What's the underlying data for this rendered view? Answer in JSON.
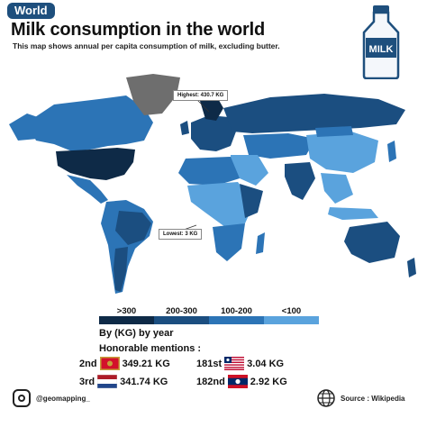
{
  "badge": "World",
  "title": "Milk consumption in the world",
  "subtitle": "This map shows annual per capita consumption of milk, excluding butter.",
  "milk_label": "MILK",
  "callouts": {
    "highest": "Highest: 430.7 KG",
    "lowest": "Lowest: 3 KG"
  },
  "legend": {
    "items": [
      {
        "label": ">300",
        "color": "#0e2a47"
      },
      {
        "label": "200-300",
        "color": "#1b4e80"
      },
      {
        "label": "100-200",
        "color": "#2c74b6"
      },
      {
        "label": "<100",
        "color": "#5aa3dd"
      }
    ],
    "caption": "By (KG) by year"
  },
  "honorable_mentions": {
    "heading": "Honorable mentions :",
    "items": [
      {
        "rank": "2nd",
        "value": "349.21 KG",
        "flag": "montenegro-flag"
      },
      {
        "rank": "3rd",
        "value": "341.74 KG",
        "flag": "netherlands-flag"
      },
      {
        "rank": "181st",
        "value": "3.04 KG",
        "flag": "liberia-flag"
      },
      {
        "rank": "182nd",
        "value": "2.92 KG",
        "flag": "laos-flag"
      }
    ]
  },
  "footer": {
    "handle": "@geomapping_",
    "source": "Source : Wikipedia"
  },
  "colors": {
    "very_high": "#0e2a47",
    "high": "#1b4e80",
    "medium": "#2c74b6",
    "low": "#5aa3dd",
    "no_data": "#6e6e6e",
    "badge": "#1e4f7d"
  }
}
